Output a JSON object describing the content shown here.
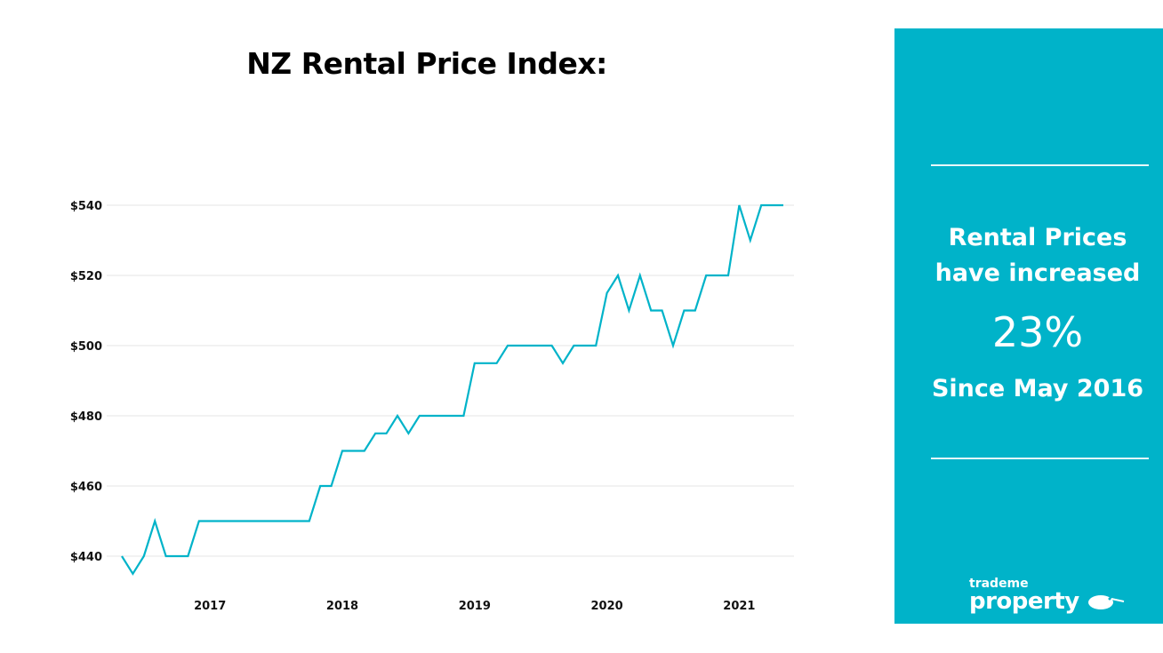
{
  "chart_data": {
    "type": "line",
    "title": "NZ Rental Price Index:",
    "xlabel": "",
    "ylabel": "",
    "x_start": "May 2016",
    "x_end": "May 2021",
    "x_frequency": "monthly",
    "x_tick_labels": [
      "2017",
      "2018",
      "2019",
      "2020",
      "2021"
    ],
    "y_tick_labels": [
      "$440",
      "$460",
      "$480",
      "$500",
      "$520",
      "$540"
    ],
    "y_ticks": [
      440,
      460,
      480,
      500,
      520,
      540
    ],
    "ylim": [
      430,
      545
    ],
    "grid": "horizontal",
    "line_color": "#00b3c9",
    "series": [
      {
        "values": [
          440,
          435,
          440,
          450,
          440,
          440,
          440,
          450,
          450,
          450,
          450,
          450,
          450,
          450,
          450,
          450,
          450,
          450,
          460,
          460,
          470,
          470,
          470,
          475,
          475,
          480,
          475,
          480,
          480,
          480,
          480,
          480,
          495,
          495,
          495,
          500,
          500,
          500,
          500,
          500,
          495,
          500,
          500,
          500,
          515,
          520,
          510,
          520,
          510,
          510,
          500,
          510,
          510,
          520,
          520,
          520,
          540,
          530,
          540,
          540,
          540
        ]
      }
    ]
  },
  "panel": {
    "line1": "Rental Prices",
    "line2": "have increased",
    "percent": "23%",
    "since": "Since May 2016",
    "background": "#00b3c9",
    "logo_small": "trademe",
    "logo_large": "property"
  }
}
